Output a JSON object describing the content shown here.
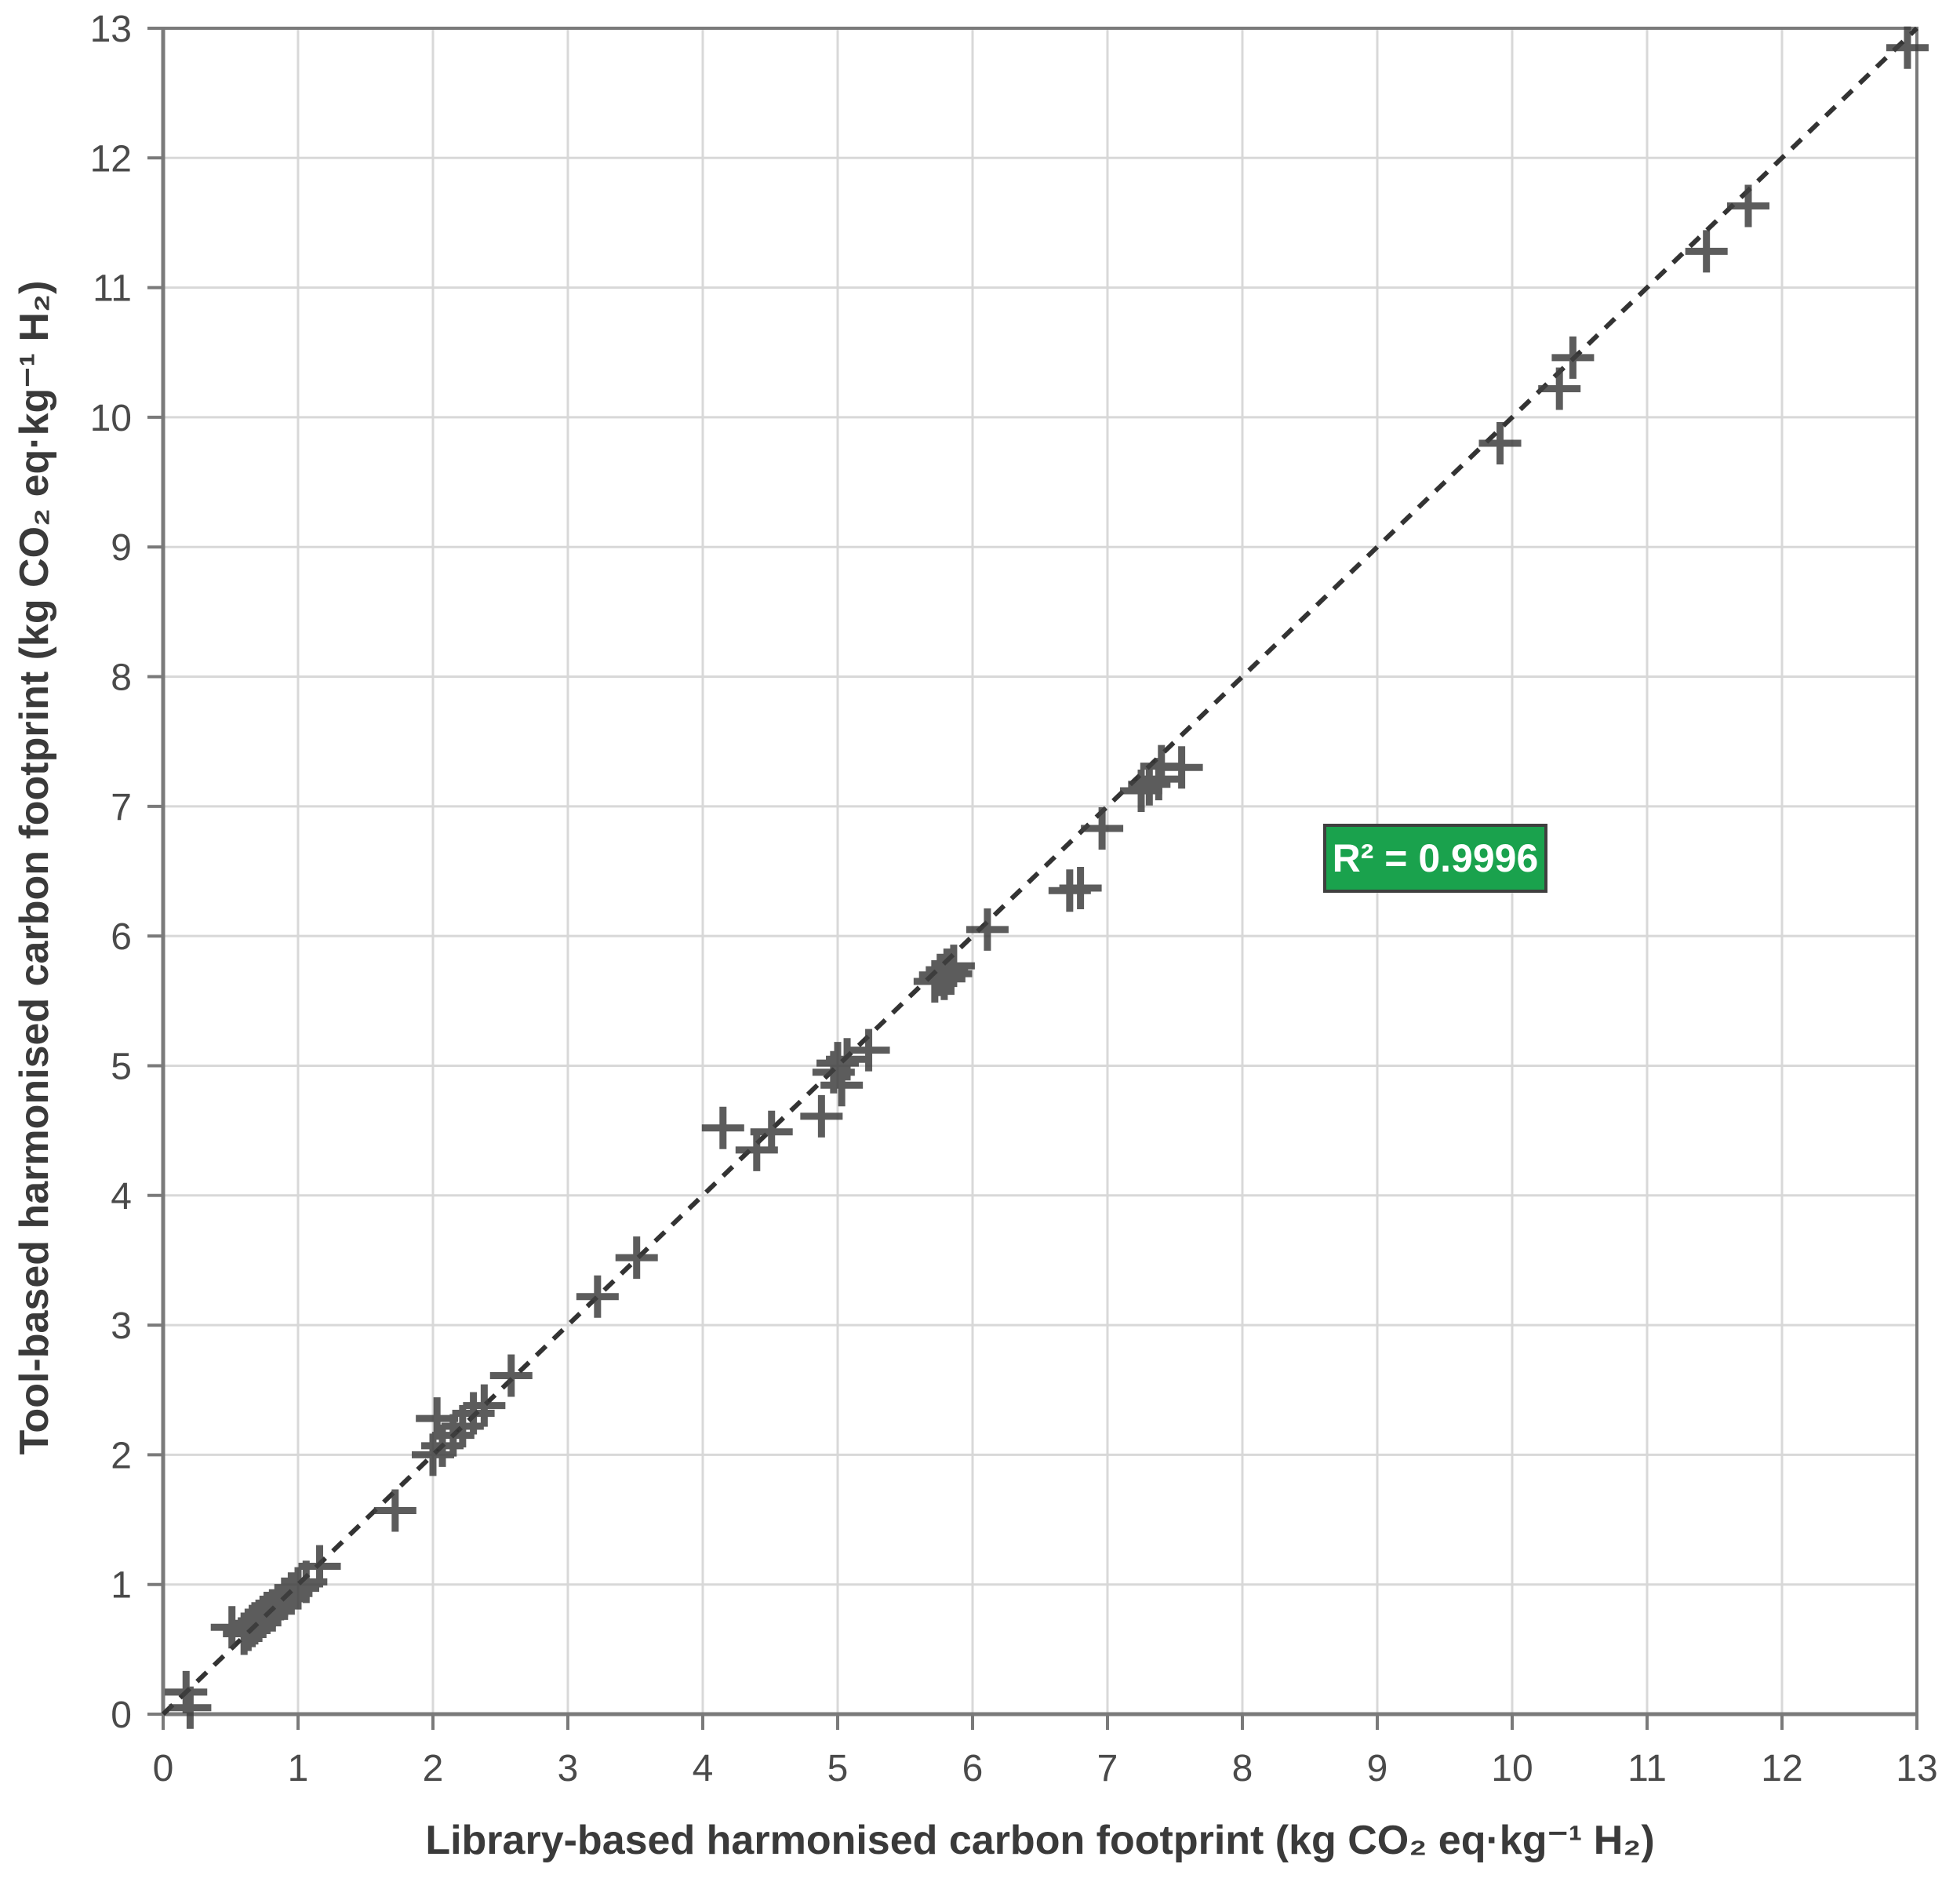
{
  "chart_data": {
    "type": "scatter",
    "title": "",
    "xlabel": "Library-based harmonised carbon footprint (kg CO₂ eq·kg⁻¹ H₂)",
    "ylabel": "Tool-based harmonised carbon footprint (kg CO₂ eq·kg⁻¹ H₂)",
    "xlim": [
      0,
      13
    ],
    "ylim": [
      0,
      13
    ],
    "xticks": [
      0,
      1,
      2,
      3,
      4,
      5,
      6,
      7,
      8,
      9,
      10,
      11,
      12,
      13
    ],
    "yticks": [
      0,
      1,
      2,
      3,
      4,
      5,
      6,
      7,
      8,
      9,
      10,
      11,
      12,
      13
    ],
    "grid": true,
    "legend_position": "none",
    "marker": "plus",
    "points": [
      [
        0.17,
        0.17
      ],
      [
        0.2,
        0.05
      ],
      [
        0.51,
        0.67
      ],
      [
        0.6,
        0.62
      ],
      [
        0.63,
        0.65
      ],
      [
        0.66,
        0.68
      ],
      [
        0.68,
        0.7
      ],
      [
        0.71,
        0.72
      ],
      [
        0.74,
        0.75
      ],
      [
        0.77,
        0.78
      ],
      [
        0.81,
        0.8
      ],
      [
        0.85,
        0.84
      ],
      [
        0.9,
        0.89
      ],
      [
        0.95,
        0.93
      ],
      [
        1.0,
        0.97
      ],
      [
        1.06,
        1.02
      ],
      [
        1.16,
        1.14
      ],
      [
        1.72,
        1.57
      ],
      [
        2.0,
        2.0
      ],
      [
        2.03,
        2.28
      ],
      [
        2.07,
        2.07
      ],
      [
        2.15,
        2.15
      ],
      [
        2.22,
        2.22
      ],
      [
        2.3,
        2.32
      ],
      [
        2.38,
        2.38
      ],
      [
        2.58,
        2.61
      ],
      [
        3.22,
        3.22
      ],
      [
        3.51,
        3.52
      ],
      [
        4.15,
        4.52
      ],
      [
        4.4,
        4.35
      ],
      [
        4.51,
        4.49
      ],
      [
        4.88,
        4.61
      ],
      [
        4.97,
        4.95
      ],
      [
        5.0,
        5.02
      ],
      [
        5.03,
        4.85
      ],
      [
        5.07,
        5.05
      ],
      [
        5.23,
        5.12
      ],
      [
        5.72,
        5.65
      ],
      [
        5.76,
        5.7
      ],
      [
        5.79,
        5.67
      ],
      [
        5.81,
        5.74
      ],
      [
        5.84,
        5.71
      ],
      [
        5.86,
        5.77
      ],
      [
        6.11,
        6.05
      ],
      [
        6.72,
        6.35
      ],
      [
        6.8,
        6.37
      ],
      [
        6.96,
        6.83
      ],
      [
        7.25,
        7.12
      ],
      [
        7.31,
        7.17
      ],
      [
        7.38,
        7.21
      ],
      [
        7.4,
        7.31
      ],
      [
        7.55,
        7.3
      ],
      [
        9.91,
        9.8
      ],
      [
        10.35,
        10.22
      ],
      [
        10.45,
        10.46
      ],
      [
        11.44,
        11.28
      ],
      [
        11.75,
        11.63
      ],
      [
        12.93,
        12.85
      ]
    ],
    "trendline": {
      "style": "dashed",
      "from": [
        0,
        0
      ],
      "to": [
        13,
        13
      ]
    },
    "annotation": {
      "text": "R² = 0.9996",
      "x": 9.43,
      "y": 6.6,
      "bg": "#1AA24D",
      "border": "#3F3F3F",
      "color": "#FFFFFF"
    },
    "colors": {
      "marker": "#3F3F3F",
      "trendline": "#333333",
      "grid": "#D8D8D8",
      "border": "#7A7A7A",
      "tick": "#7A7A7A",
      "tick_label": "#4A4A4A",
      "axis_title": "#3A3A3A",
      "background": "#FFFFFF"
    }
  }
}
